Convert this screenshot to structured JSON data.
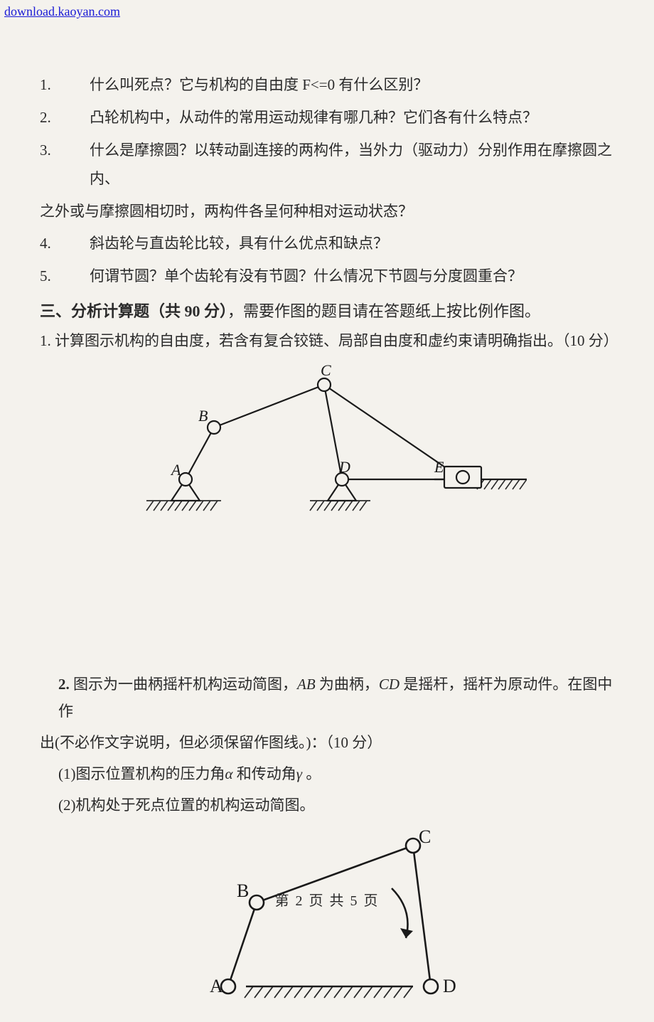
{
  "watermark": "download.kaoyan.com",
  "questions": [
    {
      "num": "1.",
      "text": "什么叫死点？它与机构的自由度 F<=0 有什么区别？"
    },
    {
      "num": "2.",
      "text": "凸轮机构中，从动件的常用运动规律有哪几种？它们各有什么特点？"
    },
    {
      "num": "3.",
      "text": "什么是摩擦圆？以转动副连接的两构件，当外力（驱动力）分别作用在摩擦圆之内、"
    }
  ],
  "q3_cont": "之外或与摩擦圆相切时，两构件各呈何种相对运动状态？",
  "questions2": [
    {
      "num": "4.",
      "text": "斜齿轮与直齿轮比较，具有什么优点和缺点？"
    },
    {
      "num": "5.",
      "text": "何谓节圆？单个齿轮有没有节圆？什么情况下节圆与分度圆重合？"
    }
  ],
  "section3": {
    "prefix": "三、分析计算题（共 90 分）",
    "handwritten": "，需要作图的题目请在答题纸上按比例作图。"
  },
  "p1": "1. 计算图示机构的自由度，若含有复合铰链、局部自由度和虚约束请明确指出。（10 分）",
  "fig1": {
    "labels": {
      "A": "A",
      "B": "B",
      "C": "C",
      "D": "D",
      "E": "E"
    },
    "stroke": "#1a1a1a",
    "stroke_width": 2.2,
    "hatch_color": "#2a2a2a",
    "pin_radius": 9,
    "pin_fill": "#f4f2ed",
    "font_size": 22,
    "font_family": "Times New Roman"
  },
  "p2": {
    "line1_a": "2. ",
    "line1_b": "图示为一曲柄摇杆机构运动简图，",
    "line1_ab": "AB",
    "line1_c": " 为曲柄，",
    "line1_cd": "CD",
    "line1_d": " 是摇杆，摇杆为原动件。在图中作",
    "line2": "出(不必作文字说明，但必须保留作图线。)：（10 分）",
    "sub1_a": "(1)图示位置机构的压力角",
    "sub1_alpha": "α",
    "sub1_b": " 和传动角",
    "sub1_gamma": "γ",
    "sub1_c": " 。",
    "sub2": "(2)机构处于死点位置的机构运动简图。"
  },
  "fig2": {
    "labels": {
      "A": "A",
      "B": "B",
      "C": "C",
      "D": "D"
    },
    "stroke": "#1a1a1a",
    "stroke_width": 2.6,
    "hatch_color": "#2a2a2a",
    "pin_radius": 10,
    "pin_fill": "#f4f2ed",
    "font_size": 26,
    "font_family": "Times New Roman"
  },
  "footer": "第 2 页 共 5 页"
}
